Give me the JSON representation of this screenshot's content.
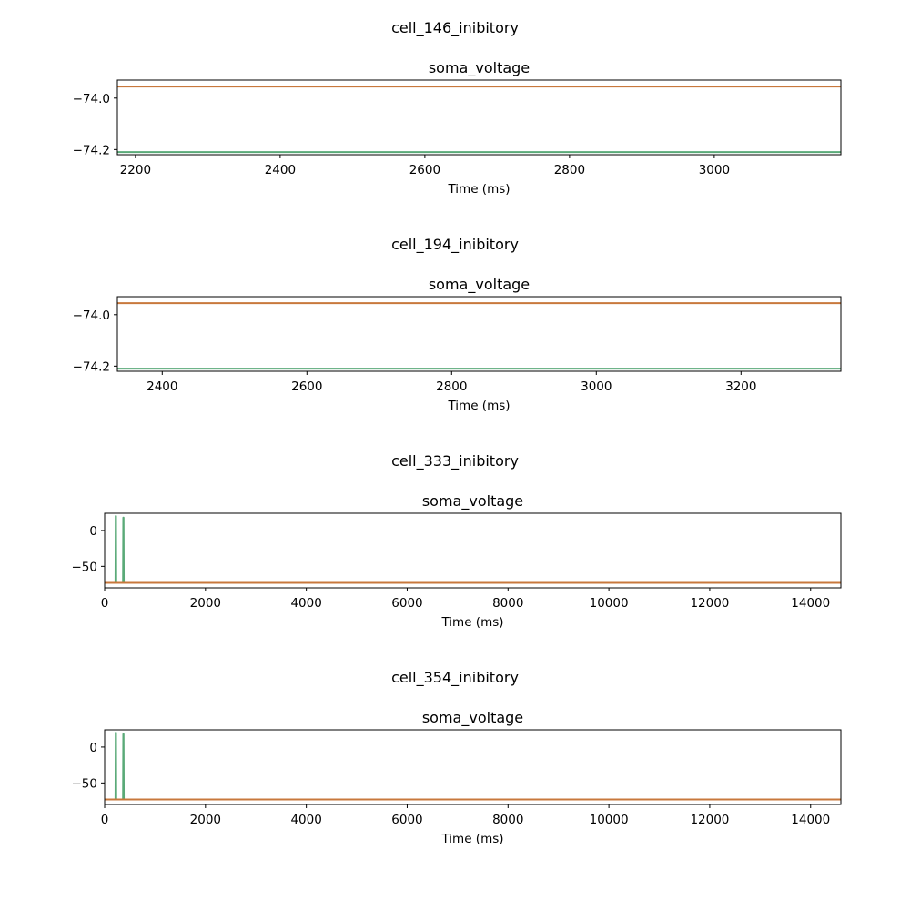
{
  "chart_data": [
    {
      "type": "line",
      "suptitle": "cell_146_inibitory",
      "title": "soma_voltage",
      "xlabel": "Time (ms)",
      "ylabel": "",
      "xlim": [
        2175,
        3175
      ],
      "ylim": [
        -74.22,
        -73.93
      ],
      "xticks": [
        2200,
        2400,
        2600,
        2800,
        3000
      ],
      "xtick_labels": [
        "2200",
        "2400",
        "2600",
        "2800",
        "3000"
      ],
      "yticks": [
        -74.0,
        -74.2
      ],
      "ytick_labels": [
        "−74.0",
        "−74.2"
      ],
      "colors": [
        "#c8783c",
        "#5aaa78"
      ],
      "series": [
        {
          "color": "#c8783c",
          "x": [
            2175,
            3175
          ],
          "y": [
            -73.955,
            -73.955
          ]
        },
        {
          "color": "#5aaa78",
          "x": [
            2175,
            3175
          ],
          "y": [
            -74.21,
            -74.21
          ]
        }
      ]
    },
    {
      "type": "line",
      "suptitle": "cell_194_inibitory",
      "title": "soma_voltage",
      "xlabel": "Time (ms)",
      "ylabel": "",
      "xlim": [
        2338,
        3338
      ],
      "ylim": [
        -74.22,
        -73.93
      ],
      "xticks": [
        2400,
        2600,
        2800,
        3000,
        3200
      ],
      "xtick_labels": [
        "2400",
        "2600",
        "2800",
        "3000",
        "3200"
      ],
      "yticks": [
        -74.0,
        -74.2
      ],
      "ytick_labels": [
        "−74.0",
        "−74.2"
      ],
      "colors": [
        "#c8783c",
        "#5aaa78"
      ],
      "series": [
        {
          "color": "#c8783c",
          "x": [
            2338,
            3338
          ],
          "y": [
            -73.955,
            -73.955
          ]
        },
        {
          "color": "#5aaa78",
          "x": [
            2338,
            3338
          ],
          "y": [
            -74.21,
            -74.21
          ]
        }
      ]
    },
    {
      "type": "line",
      "suptitle": "cell_333_inibitory",
      "title": "soma_voltage",
      "xlabel": "Time (ms)",
      "ylabel": "",
      "xlim": [
        0,
        14600
      ],
      "ylim": [
        -80,
        24
      ],
      "xticks": [
        0,
        2000,
        4000,
        6000,
        8000,
        10000,
        12000,
        14000
      ],
      "xtick_labels": [
        "0",
        "2000",
        "4000",
        "6000",
        "8000",
        "10000",
        "12000",
        "14000"
      ],
      "yticks": [
        0,
        -50
      ],
      "ytick_labels": [
        "0",
        "−50"
      ],
      "colors": [
        "#c8783c",
        "#5aaa78"
      ],
      "series": [
        {
          "color": "#5aaa78",
          "x": [
            0,
            215,
            220,
            225,
            230,
            365,
            370,
            375,
            380,
            14600
          ],
          "y": [
            -73,
            -73,
            20,
            20,
            -73,
            -73,
            18,
            18,
            -73,
            -73
          ]
        },
        {
          "color": "#c8783c",
          "x": [
            0,
            14600
          ],
          "y": [
            -73,
            -73
          ]
        }
      ]
    },
    {
      "type": "line",
      "suptitle": "cell_354_inibitory",
      "title": "soma_voltage",
      "xlabel": "Time (ms)",
      "ylabel": "",
      "xlim": [
        0,
        14600
      ],
      "ylim": [
        -80,
        24
      ],
      "xticks": [
        0,
        2000,
        4000,
        6000,
        8000,
        10000,
        12000,
        14000
      ],
      "xtick_labels": [
        "0",
        "2000",
        "4000",
        "6000",
        "8000",
        "10000",
        "12000",
        "14000"
      ],
      "yticks": [
        0,
        -50
      ],
      "ytick_labels": [
        "0",
        "−50"
      ],
      "colors": [
        "#c8783c",
        "#5aaa78"
      ],
      "series": [
        {
          "color": "#5aaa78",
          "x": [
            0,
            215,
            220,
            225,
            230,
            365,
            370,
            375,
            380,
            14600
          ],
          "y": [
            -73,
            -73,
            20,
            20,
            -73,
            -73,
            18,
            18,
            -73,
            -73
          ]
        },
        {
          "color": "#c8783c",
          "x": [
            0,
            14600
          ],
          "y": [
            -73,
            -73
          ]
        }
      ]
    }
  ]
}
